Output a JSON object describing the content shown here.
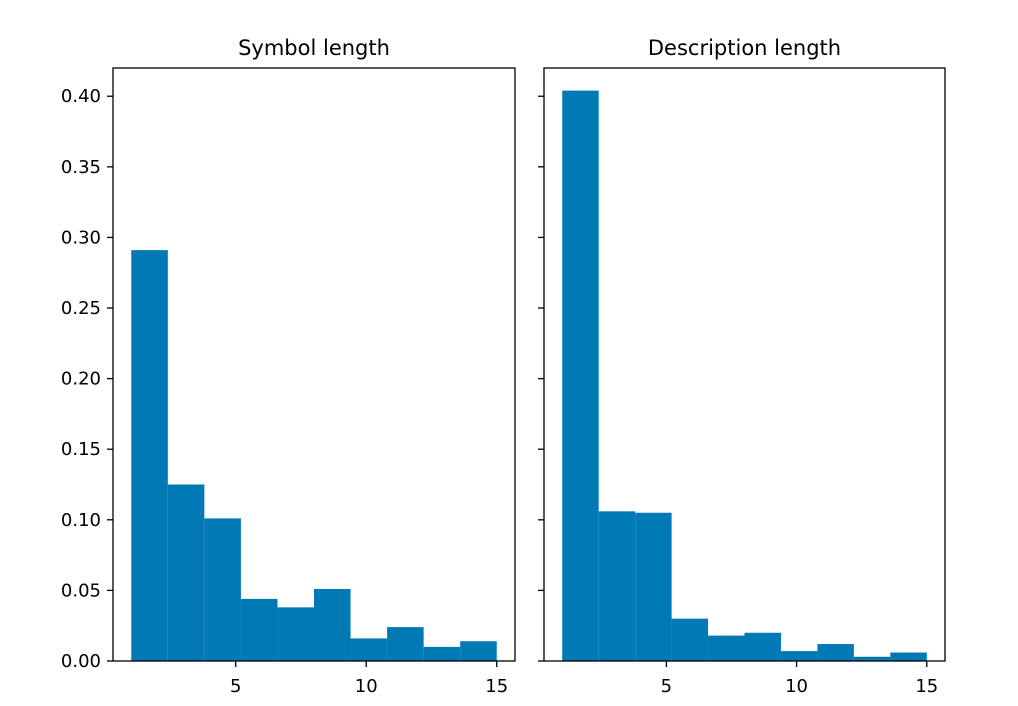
{
  "chart_data": [
    {
      "type": "bar",
      "title": "Symbol length",
      "xlabel": "",
      "ylabel": "",
      "bin_edges": [
        1.0,
        2.4,
        3.8,
        5.2,
        6.6,
        8.0,
        9.4,
        10.8,
        12.2,
        13.6,
        15.0
      ],
      "values": [
        0.291,
        0.125,
        0.101,
        0.044,
        0.038,
        0.051,
        0.016,
        0.024,
        0.01,
        0.014
      ],
      "xlim": [
        0.3,
        15.7
      ],
      "ylim": [
        0,
        0.42
      ],
      "xticks": [
        5,
        10,
        15
      ],
      "yticks": [
        "0.00",
        "0.05",
        "0.10",
        "0.15",
        "0.20",
        "0.25",
        "0.30",
        "0.35",
        "0.40"
      ],
      "color": "#0079b5",
      "grid": false
    },
    {
      "type": "bar",
      "title": "Description length",
      "xlabel": "",
      "ylabel": "",
      "bin_edges": [
        1.0,
        2.4,
        3.8,
        5.2,
        6.6,
        8.0,
        9.4,
        10.8,
        12.2,
        13.6,
        15.0
      ],
      "values": [
        0.404,
        0.106,
        0.105,
        0.03,
        0.018,
        0.02,
        0.007,
        0.012,
        0.003,
        0.006
      ],
      "xlim": [
        0.3,
        15.7
      ],
      "ylim": [
        0,
        0.42
      ],
      "xticks": [
        5,
        10,
        15
      ],
      "yticks": [
        "0.00",
        "0.05",
        "0.10",
        "0.15",
        "0.20",
        "0.25",
        "0.30",
        "0.35",
        "0.40"
      ],
      "shared_y": true,
      "color": "#0079b5",
      "grid": false
    }
  ]
}
